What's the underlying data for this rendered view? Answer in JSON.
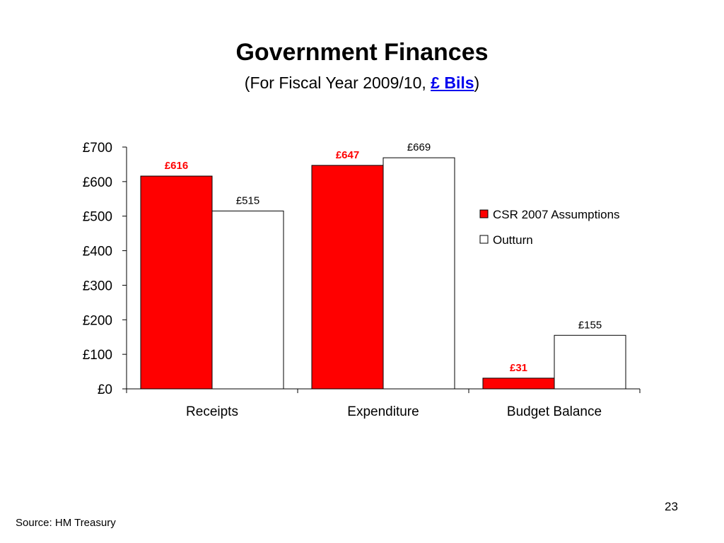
{
  "slide": {
    "title": "Government Finances",
    "subtitle_prefix": "(For Fiscal Year 2009/10, ",
    "subtitle_unit": "£ Bils",
    "subtitle_suffix": ")",
    "source": "Source: HM Treasury",
    "page_number": "23"
  },
  "chart_data": {
    "type": "bar",
    "categories": [
      "Receipts",
      "Expenditure",
      "Budget Balance"
    ],
    "series": [
      {
        "name": "CSR 2007 Assumptions",
        "values": [
          616,
          647,
          31
        ],
        "labels": [
          "£616",
          "£647",
          "£31"
        ],
        "color": "#ff0000",
        "label_color": "#ff0000",
        "label_bold": true
      },
      {
        "name": "Outturn",
        "values": [
          515,
          669,
          155
        ],
        "labels": [
          "£515",
          "£669",
          "£155"
        ],
        "color": "#ffffff",
        "label_color": "#000000",
        "label_bold": false
      }
    ],
    "ylim": [
      0,
      700
    ],
    "yticks": [
      0,
      100,
      200,
      300,
      400,
      500,
      600,
      700
    ],
    "ytick_labels": [
      "£0",
      "£100",
      "£200",
      "£300",
      "£400",
      "£500",
      "£600",
      "£700"
    ],
    "grid": false,
    "legend": "right"
  }
}
